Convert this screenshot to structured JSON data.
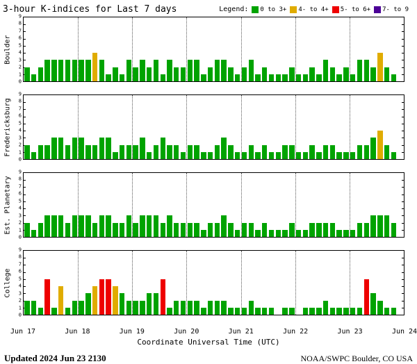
{
  "header": {
    "title": "3-hour K-indices for Last 7 days",
    "legend_label": "Legend:",
    "legend": [
      {
        "label": "0 to 3+",
        "color": "#00a300"
      },
      {
        "label": "4- to 4+",
        "color": "#e0ac00"
      },
      {
        "label": "5- to 6+",
        "color": "#ee0000"
      },
      {
        "label": "7- to 9",
        "color": "#4b0096"
      }
    ]
  },
  "footer": {
    "updated": "Updated 2024 Jun 23 2130",
    "credit": "NOAA/SWPC Boulder, CO USA"
  },
  "chart_data": {
    "type": "bar",
    "title": "3-hour K-indices for Last 7 days",
    "xlabel": "Coordinate Universal Time (UTC)",
    "x_tick_labels": [
      "Jun 17",
      "Jun 18",
      "Jun 19",
      "Jun 20",
      "Jun 21",
      "Jun 22",
      "Jun 23",
      "Jun 24"
    ],
    "ylim": [
      0,
      9
    ],
    "y_ticks": [
      0,
      1,
      2,
      3,
      4,
      5,
      6,
      7,
      8,
      9
    ],
    "bars_per_day": 8,
    "bar_interval_hours": 3,
    "grid": "vertical-dotted-at-day-boundaries",
    "color_scale": [
      {
        "range": "0 to 3+",
        "max": 3,
        "color": "#00a300"
      },
      {
        "range": "4- to 4+",
        "max": 4,
        "color": "#e0ac00"
      },
      {
        "range": "5- to 6+",
        "max": 6,
        "color": "#ee0000"
      },
      {
        "range": "7- to 9",
        "max": 9,
        "color": "#4b0096"
      }
    ],
    "series": [
      {
        "name": "Boulder",
        "values": [
          2,
          1,
          2,
          3,
          3,
          3,
          3,
          3,
          3,
          3,
          4,
          3,
          1,
          2,
          1,
          3,
          2,
          3,
          2,
          3,
          1,
          3,
          2,
          2,
          3,
          3,
          1,
          2,
          3,
          3,
          2,
          1,
          2,
          3,
          1,
          2,
          1,
          1,
          1,
          2,
          1,
          1,
          2,
          1,
          3,
          2,
          1,
          2,
          1,
          3,
          3,
          2,
          4,
          2,
          1,
          0
        ]
      },
      {
        "name": "Fredericksburg",
        "values": [
          2,
          1,
          2,
          2,
          3,
          3,
          2,
          3,
          3,
          2,
          2,
          3,
          3,
          1,
          2,
          2,
          2,
          3,
          1,
          2,
          3,
          2,
          2,
          1,
          2,
          2,
          1,
          1,
          2,
          3,
          2,
          1,
          1,
          2,
          1,
          2,
          1,
          1,
          2,
          2,
          1,
          1,
          2,
          1,
          2,
          2,
          1,
          1,
          1,
          2,
          2,
          3,
          4,
          2,
          1,
          0
        ]
      },
      {
        "name": "Est. Planetary",
        "values": [
          2,
          1,
          2,
          3,
          3,
          3,
          2,
          3,
          3,
          3,
          2,
          3,
          3,
          2,
          2,
          3,
          2,
          3,
          3,
          3,
          2,
          3,
          2,
          2,
          2,
          2,
          1,
          2,
          2,
          3,
          2,
          1,
          2,
          2,
          1,
          2,
          1,
          1,
          1,
          2,
          1,
          1,
          2,
          2,
          2,
          2,
          1,
          1,
          1,
          2,
          2,
          3,
          3,
          3,
          2,
          0
        ]
      },
      {
        "name": "College",
        "values": [
          2,
          2,
          1,
          5,
          1,
          4,
          1,
          2,
          2,
          3,
          4,
          5,
          5,
          4,
          3,
          2,
          2,
          2,
          3,
          3,
          5,
          1,
          2,
          2,
          2,
          2,
          1,
          2,
          2,
          2,
          1,
          1,
          1,
          2,
          1,
          1,
          1,
          0,
          1,
          1,
          0,
          1,
          1,
          1,
          2,
          1,
          1,
          1,
          1,
          1,
          5,
          3,
          2,
          1,
          1,
          0
        ]
      }
    ]
  }
}
